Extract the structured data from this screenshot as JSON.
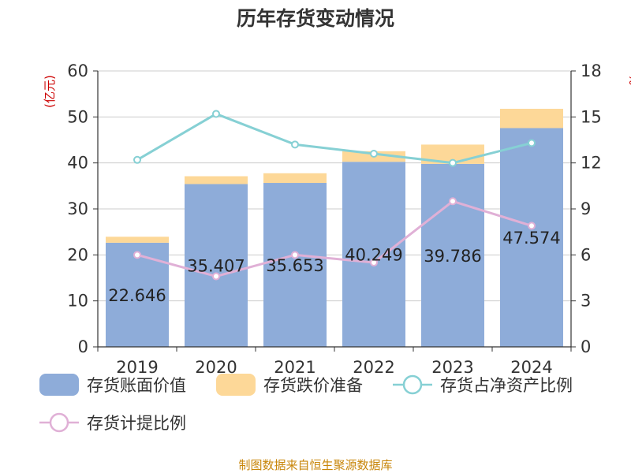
{
  "chart_data": {
    "type": "bar",
    "title": "历年存货变动情况",
    "categories": [
      "2019",
      "2020",
      "2021",
      "2022",
      "2023",
      "2024"
    ],
    "left_axis_unit": "(亿元)",
    "right_axis_unit": "%",
    "ylim_left": [
      0,
      60
    ],
    "yticks_left": [
      "0",
      "10",
      "20",
      "30",
      "40",
      "50",
      "60"
    ],
    "ylim_right": [
      0,
      18
    ],
    "yticks_right": [
      "0",
      "3",
      "6",
      "9",
      "12",
      "15",
      "18"
    ],
    "grid": true,
    "legend_position": "bottom",
    "series": [
      {
        "name": "存货账面价值",
        "type": "bar",
        "stack": "inventory",
        "axis": "left",
        "color": "#8eacd9",
        "values": [
          22.646,
          35.407,
          35.653,
          40.249,
          39.786,
          47.574
        ],
        "labels": [
          "22.646",
          "35.407",
          "35.653",
          "40.249",
          "39.786",
          "47.574"
        ]
      },
      {
        "name": "存货跌价准备",
        "type": "bar",
        "stack": "inventory",
        "axis": "left",
        "color": "#fdd898",
        "values": [
          1.3,
          1.7,
          2.1,
          2.3,
          4.2,
          4.2
        ]
      },
      {
        "name": "存货占净资产比例",
        "type": "line",
        "axis": "right",
        "color": "#86d0d4",
        "values": [
          12.2,
          15.2,
          13.2,
          12.6,
          12.0,
          13.3
        ]
      },
      {
        "name": "存货计提比例",
        "type": "line",
        "axis": "right",
        "color": "#e0b0d6",
        "values": [
          6.0,
          4.6,
          6.0,
          5.5,
          9.5,
          7.9
        ]
      }
    ],
    "source": "制图数据来自恒生聚源数据库"
  }
}
